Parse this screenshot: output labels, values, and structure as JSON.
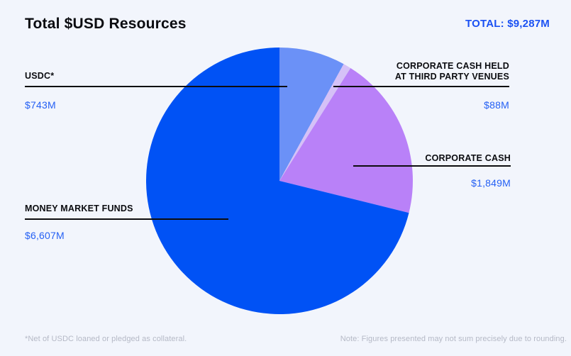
{
  "header": {
    "title": "Total $USD Resources",
    "total_label": "TOTAL: $9,287M"
  },
  "chart_data": {
    "type": "pie",
    "title": "Total $USD Resources",
    "total_label": "TOTAL: $9,287M",
    "total_value_musd": 9287,
    "unit": "$M USD",
    "start_angle": "12 o'clock",
    "direction": "clockwise",
    "categories": [
      "USDC*",
      "CORPORATE CASH HELD\nAT THIRD PARTY VENUES",
      "CORPORATE CASH",
      "MONEY MARKET FUNDS"
    ],
    "values": [
      743,
      88,
      1849,
      6607
    ],
    "value_labels": [
      "$743M",
      "$88M",
      "$1,849M",
      "$6,607M"
    ],
    "colors": [
      "#6b91f7",
      "#d5c1f7",
      "#b981f8",
      "#0052f5"
    ],
    "slice_ids": [
      "usdc",
      "corporate-cash-third-party-venues",
      "corporate-cash",
      "money-market-funds"
    ]
  },
  "footer": {
    "left_note": "*Net of USDC loaned or pledged as collateral.",
    "right_note": "Note: Figures presented may not sum precisely due to rounding."
  }
}
